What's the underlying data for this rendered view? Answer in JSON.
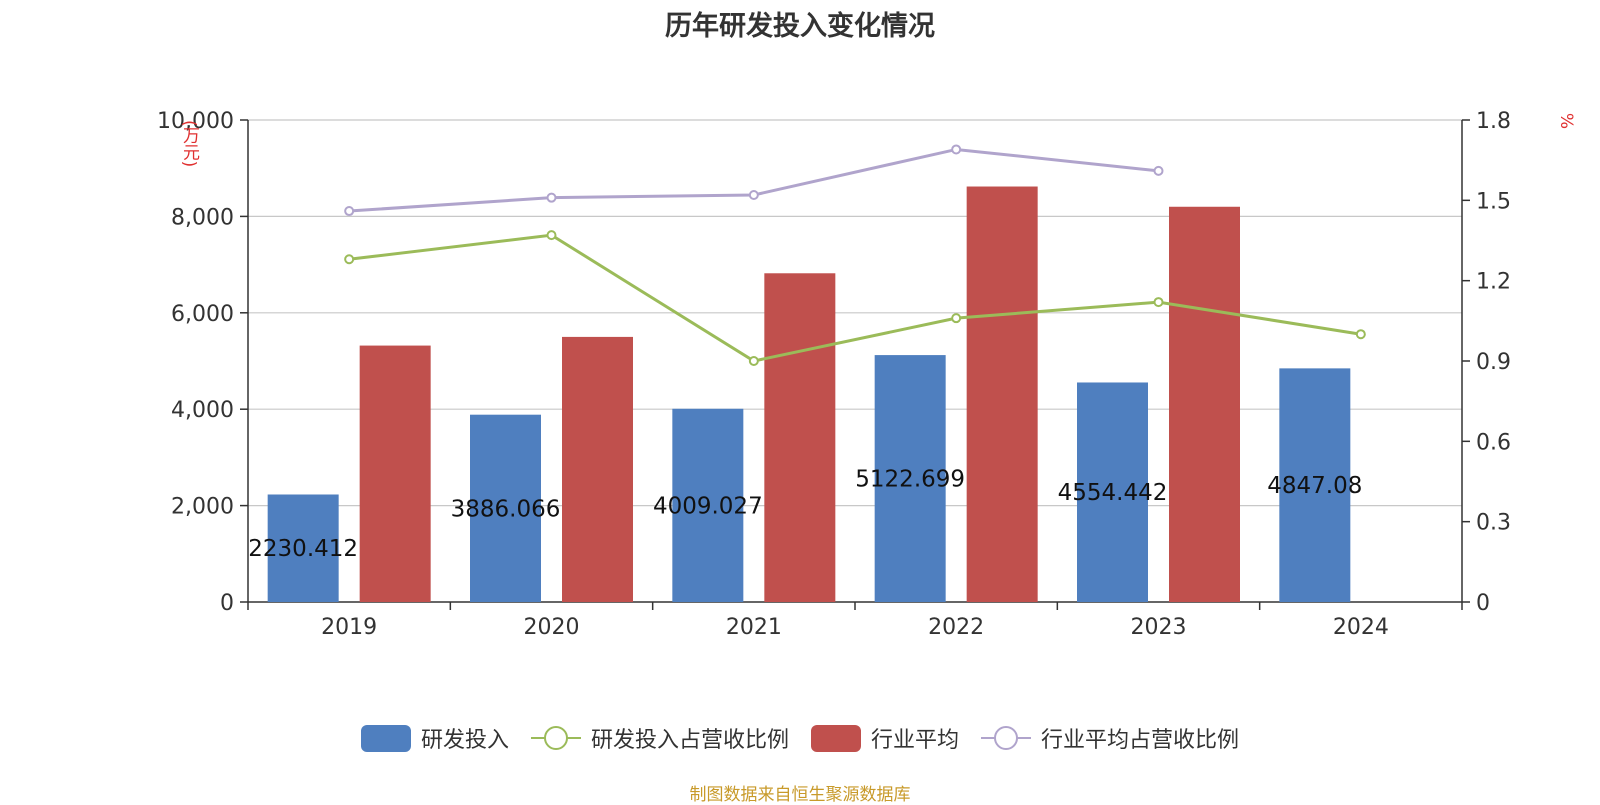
{
  "chart_data": {
    "type": "bar",
    "title": "历年研发投入变化情况",
    "categories": [
      "2019",
      "2020",
      "2021",
      "2022",
      "2023",
      "2024"
    ],
    "left_axis": {
      "unit": "(万元)",
      "min": 0,
      "max": 10000,
      "ticks": [
        "0",
        "2,000",
        "4,000",
        "6,000",
        "8,000",
        "10,000"
      ],
      "tick_values": [
        0,
        2000,
        4000,
        6000,
        8000,
        10000
      ]
    },
    "right_axis": {
      "unit": "%",
      "min": 0,
      "max": 1.8,
      "ticks": [
        "0",
        "0.3",
        "0.6",
        "0.9",
        "1.2",
        "1.5",
        "1.8"
      ],
      "tick_values": [
        0,
        0.3,
        0.6,
        0.9,
        1.2,
        1.5,
        1.8
      ]
    },
    "grid": true,
    "legend_position": "bottom-center",
    "series": [
      {
        "name": "研发投入",
        "kind": "bar",
        "axis": "left",
        "color": "#4f7fbf",
        "values": [
          2230.412,
          3886.066,
          4009.027,
          5122.699,
          4554.442,
          4847.08
        ],
        "labels": [
          "2230.412",
          "3886.066",
          "4009.027",
          "5122.699",
          "4554.442",
          "4847.08"
        ]
      },
      {
        "name": "研发投入占营收比例",
        "kind": "line",
        "axis": "right",
        "color": "#9bbb59",
        "values": [
          1.28,
          1.37,
          0.9,
          1.06,
          1.12,
          1.0
        ]
      },
      {
        "name": "行业平均",
        "kind": "bar",
        "axis": "left",
        "color": "#c0504d",
        "values": [
          5320,
          5500,
          6820,
          8620,
          8200,
          null
        ]
      },
      {
        "name": "行业平均占营收比例",
        "kind": "line",
        "axis": "right",
        "color": "#b0a4cc",
        "values": [
          1.46,
          1.51,
          1.52,
          1.69,
          1.61,
          null
        ]
      }
    ]
  },
  "source": "制图数据来自恒生聚源数据库"
}
